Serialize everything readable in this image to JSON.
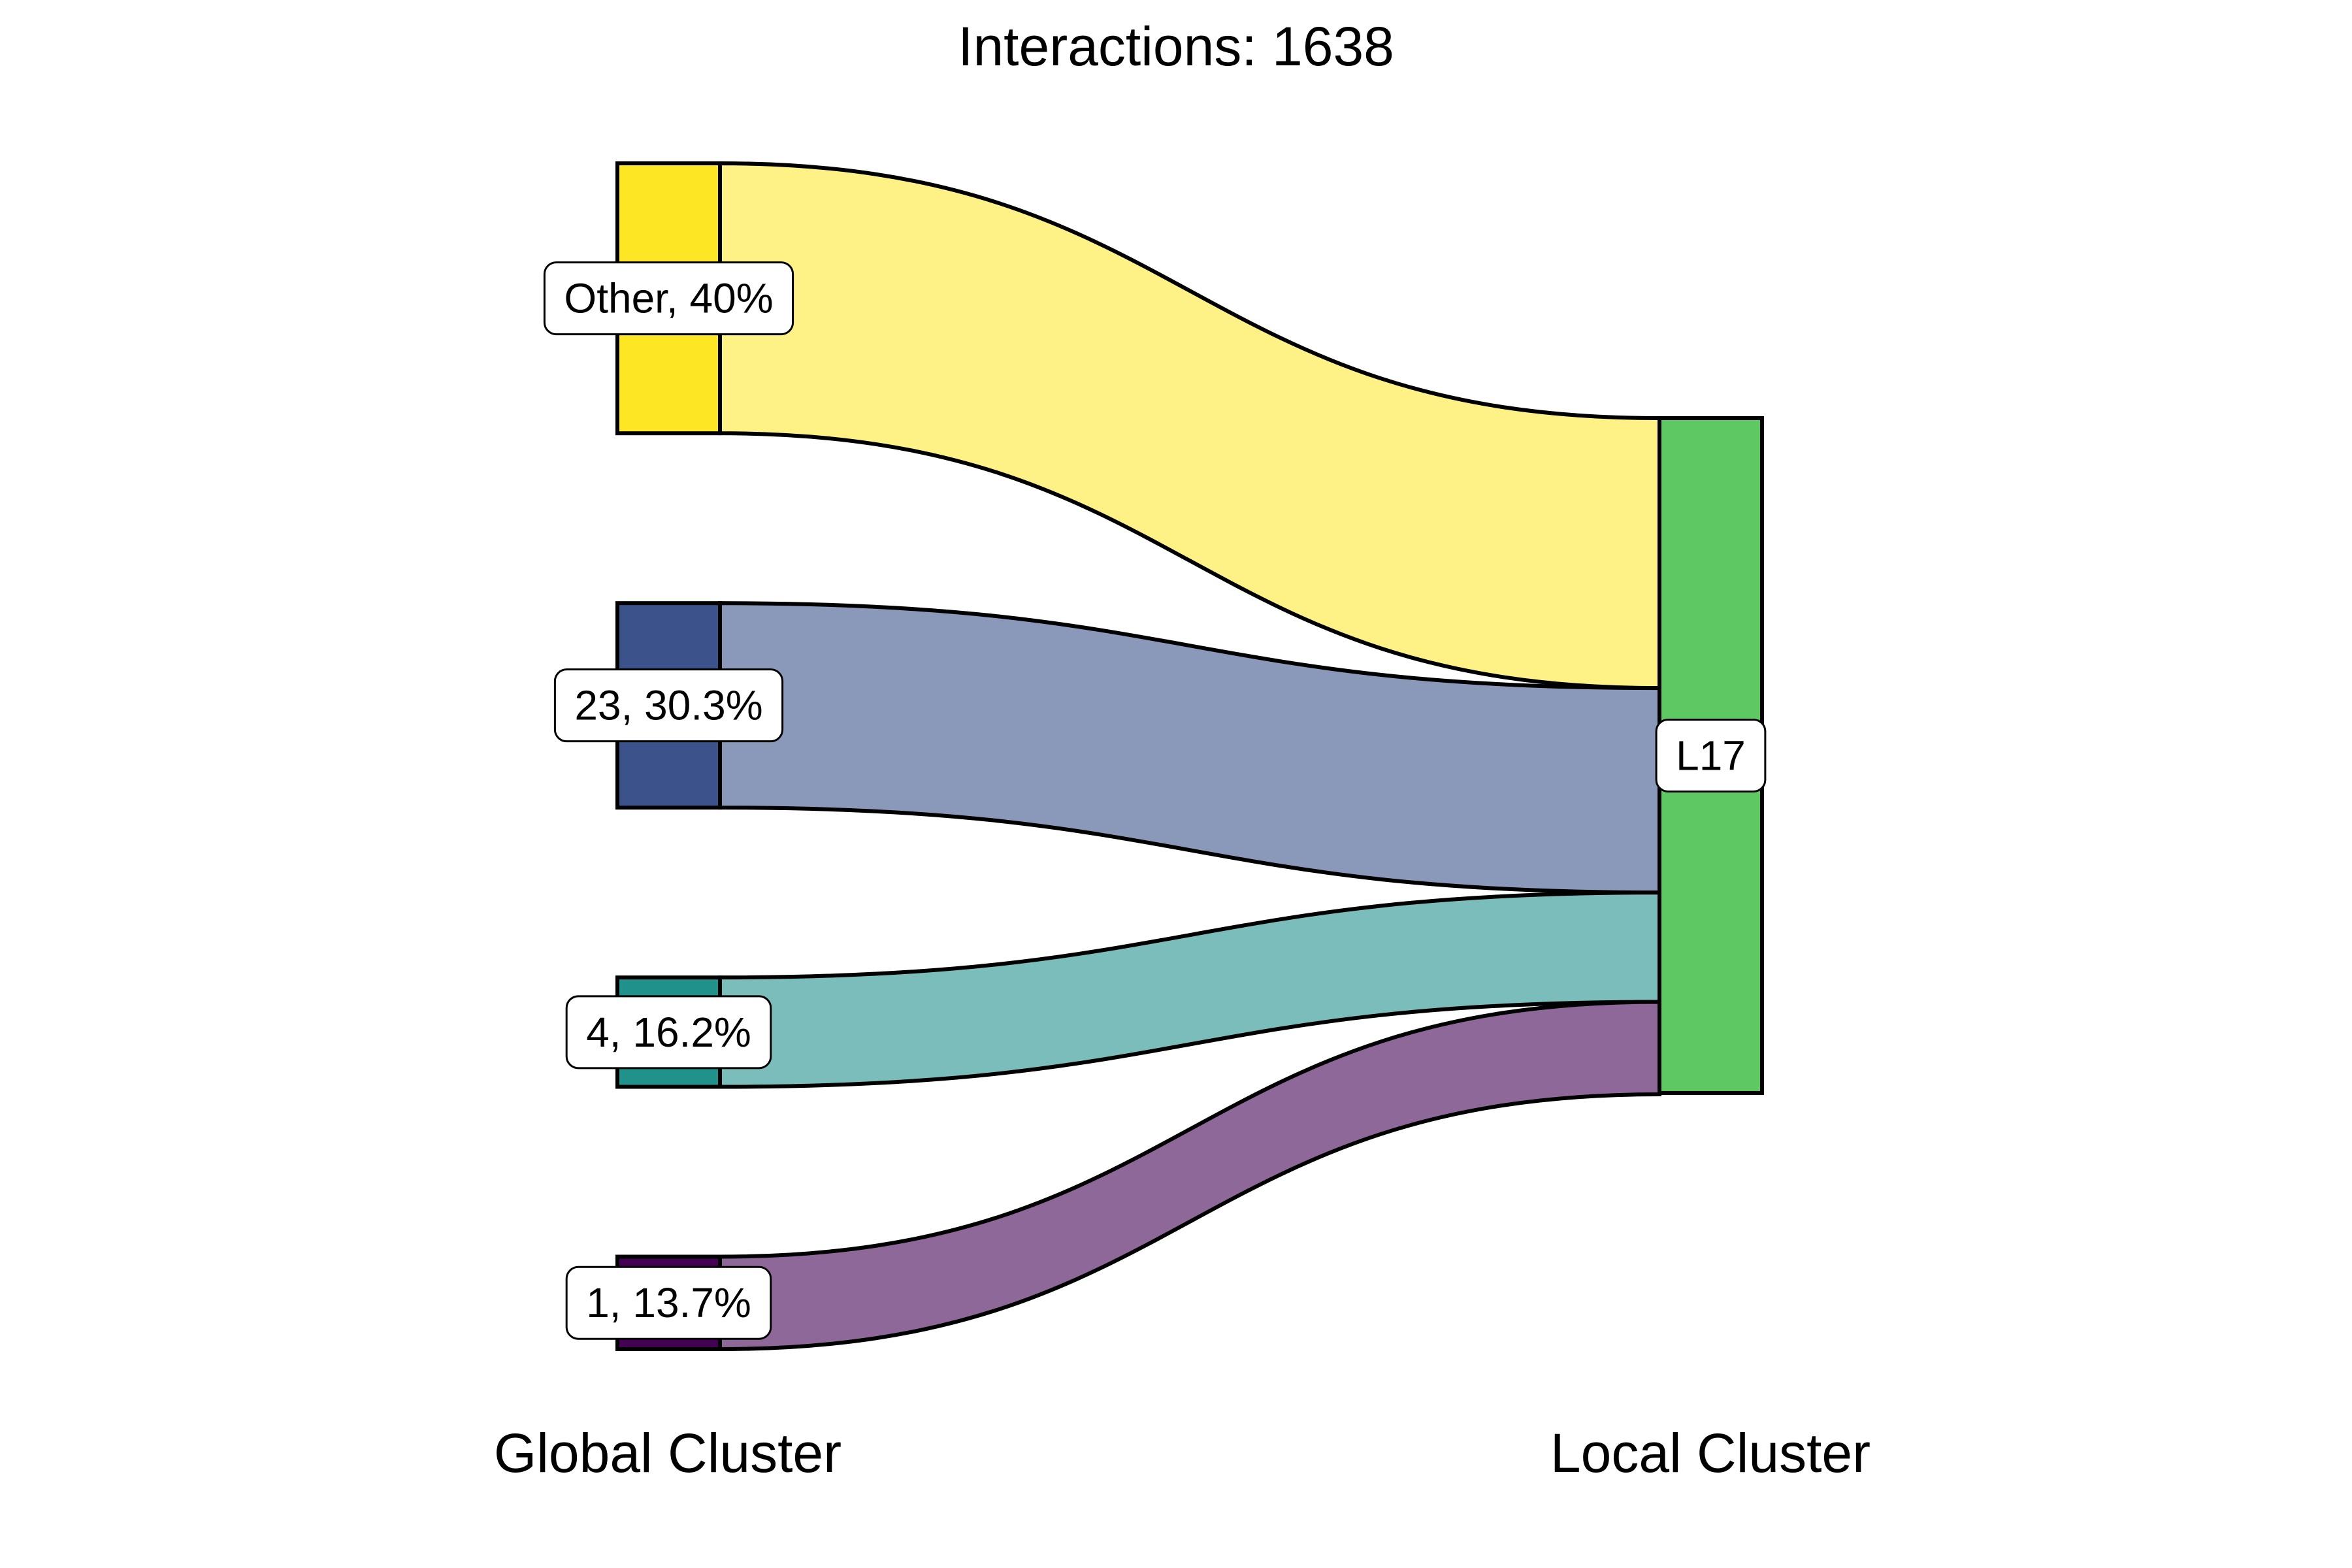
{
  "colors": {
    "node_other": "#fde725",
    "node_23": "#3b528b",
    "node_4": "#21918c",
    "node_1": "#440154",
    "node_L17": "#5ec962",
    "flow_other": "#fef287",
    "flow_23": "#8a99b9",
    "flow_4": "#7abdba",
    "flow_1": "#8e6898",
    "stroke": "#000000",
    "background": "#ffffff"
  },
  "chart_data": {
    "type": "sankey",
    "title": "Interactions: 1638",
    "total": 1638,
    "axes": [
      {
        "key": "global",
        "label": "Global Cluster"
      },
      {
        "key": "local",
        "label": "Local Cluster"
      }
    ],
    "left_nodes": [
      {
        "id": "other",
        "label": "Other, 40%",
        "share": 40.0,
        "color_key": "node_other"
      },
      {
        "id": "23",
        "label": "23, 30.3%",
        "share": 30.3,
        "color_key": "node_23"
      },
      {
        "id": "4",
        "label": "4, 16.2%",
        "share": 16.2,
        "color_key": "node_4"
      },
      {
        "id": "1",
        "label": "1, 13.7%",
        "share": 13.7,
        "color_key": "node_1"
      }
    ],
    "right_nodes": [
      {
        "id": "L17",
        "label": "L17",
        "share": 100.0,
        "color_key": "node_L17"
      }
    ],
    "flows": [
      {
        "from": "other",
        "to": "L17",
        "share": 40.0,
        "color_key": "flow_other"
      },
      {
        "from": "23",
        "to": "L17",
        "share": 30.3,
        "color_key": "flow_23"
      },
      {
        "from": "4",
        "to": "L17",
        "share": 16.2,
        "color_key": "flow_4"
      },
      {
        "from": "1",
        "to": "L17",
        "share": 13.7,
        "color_key": "flow_1"
      }
    ]
  }
}
